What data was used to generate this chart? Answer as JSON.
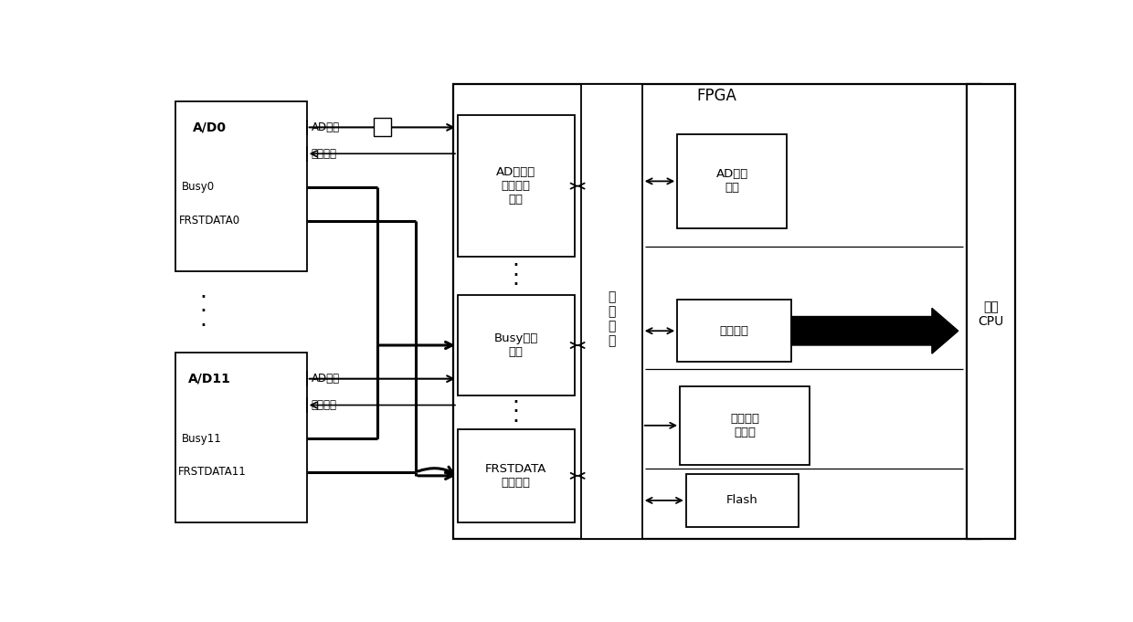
{
  "bg": "#ffffff",
  "fw": 12.4,
  "fh": 6.81,
  "black": "#000000",
  "white": "#ffffff",
  "boxes": {
    "ad0": [
      0.038,
      0.59,
      0.15,
      0.355
    ],
    "ad11": [
      0.038,
      0.065,
      0.15,
      0.355
    ],
    "fpga": [
      0.355,
      0.03,
      0.6,
      0.95
    ],
    "dex": [
      0.5,
      0.03,
      0.07,
      0.95
    ],
    "adc": [
      0.36,
      0.62,
      0.133,
      0.295
    ],
    "busy": [
      0.36,
      0.33,
      0.133,
      0.21
    ],
    "frst": [
      0.36,
      0.065,
      0.133,
      0.195
    ],
    "adcheck": [
      0.61,
      0.68,
      0.125,
      0.195
    ],
    "dataproc": [
      0.61,
      0.4,
      0.13,
      0.13
    ],
    "power": [
      0.613,
      0.185,
      0.148,
      0.165
    ],
    "flash": [
      0.62,
      0.055,
      0.128,
      0.112
    ],
    "cpu": [
      0.94,
      0.03,
      0.055,
      0.95
    ]
  }
}
